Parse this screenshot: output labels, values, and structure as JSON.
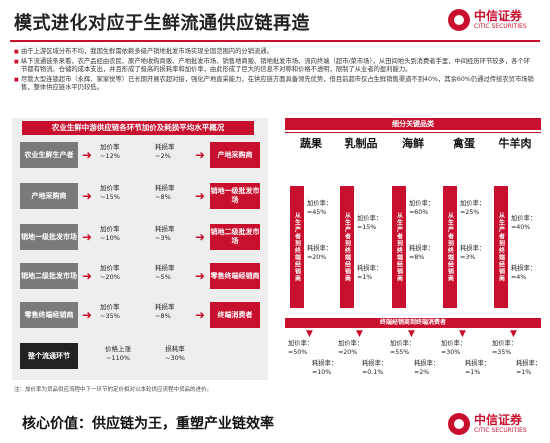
{
  "title": "模式进化对应于生鲜流通供应链再造",
  "logo": {
    "cn": "中信证券",
    "en": "CITIC SECURITIES"
  },
  "bullets": [
    "由于上游区域分布不均，我国生鲜需依赖多级产销地批发市场实现全国范围内的分销流通。",
    "纵下流通链条来看，农产品经由农民、原产地收购商贩、产地批发市场、销售地商贩、销地批发市场、流向终端（超市/菜市场），从田间地头到消费者手里，中间经历环节较多，各个环节都有物流、仓储的成本支出，并且形成了极高的损耗率和加价率，由此形成了巨大的信息不对称和价格不透明，限制了从业者的盈利能力。",
    "尽管大型连锁超市（永辉、家家悦等）已长期开展农超对接，强化产地直采能力，在供应链方面具备领先优势，但目前超市仅占生鲜销售渠道不到40%，其余60%仍通过传统农贸市场销售，整体供应链水平仍较低。"
  ],
  "left": {
    "header": "农业生鲜中游供应链各环节加价及耗损平均水平概况",
    "rows": [
      {
        "stage": "农业生鲜生产者",
        "markup": "加价率\n~12%",
        "loss": "耗损率\n~2%",
        "dest": "产地采购商"
      },
      {
        "stage": "产地采购商",
        "markup": "加价率\n~15%",
        "loss": "耗损率\n~8%",
        "dest": "销地一级批发市场"
      },
      {
        "stage": "销地一级批发市场",
        "markup": "加价率\n~10%",
        "loss": "耗损率\n~3%",
        "dest": "销地二级批发市场"
      },
      {
        "stage": "销地二级批发市场",
        "markup": "加价率\n~20%",
        "loss": "耗损率\n~5%",
        "dest": "零售终端经销商"
      },
      {
        "stage": "零售终端经销商",
        "markup": "加价率\n~35%",
        "loss": "耗损率\n~8%",
        "dest": "终端消费者"
      }
    ],
    "total": {
      "stage": "整个流通环节",
      "price": "价格上涨\n~110%",
      "loss": "损耗率\n~30%"
    },
    "note": "注：加价率为货品供应流程中下一环节的定价相对以本轮供应流程中货品的进价。"
  },
  "right": {
    "header": "细分关键品类",
    "categories": [
      "蔬果",
      "乳制品",
      "海鲜",
      "禽蛋",
      "牛羊肉"
    ],
    "vertical_label": "从生产者到终端经销商",
    "top_rates": [
      {
        "markup": "加价率：\n≈45%",
        "loss": "耗损率：\n≈20%"
      },
      {
        "markup": "加价率：\n≈15%",
        "loss": "耗损率：\n≈1%"
      },
      {
        "markup": "加价率：\n≈60%",
        "loss": "耗损率：\n≈8%"
      },
      {
        "markup": "加价率：\n≈25%",
        "loss": "耗损率：\n≈3%"
      },
      {
        "markup": "加价率：\n≈40%",
        "loss": "耗损率：\n≈4%"
      }
    ],
    "band": "终端经销商到终端消费者",
    "bottom_rates": [
      {
        "markup": "加价率：\n≈50%",
        "loss": "耗损率：\n≈10%"
      },
      {
        "markup": "加价率：\n≈20%",
        "loss": "耗损率：\n≈0.1%"
      },
      {
        "markup": "加价率：\n≈55%",
        "loss": "耗损率：\n≈2%"
      },
      {
        "markup": "加价率：\n≈30%",
        "loss": "耗损率：\n≈1%"
      },
      {
        "markup": "加价率：\n≈35%",
        "loss": "耗损率：\n≈1%"
      }
    ]
  },
  "core": "核心价值：供应链为王，重塑产业链效率",
  "colors": {
    "accent": "#c8102e",
    "stage": "#7a7a7a",
    "panel": "#eeeeee"
  }
}
